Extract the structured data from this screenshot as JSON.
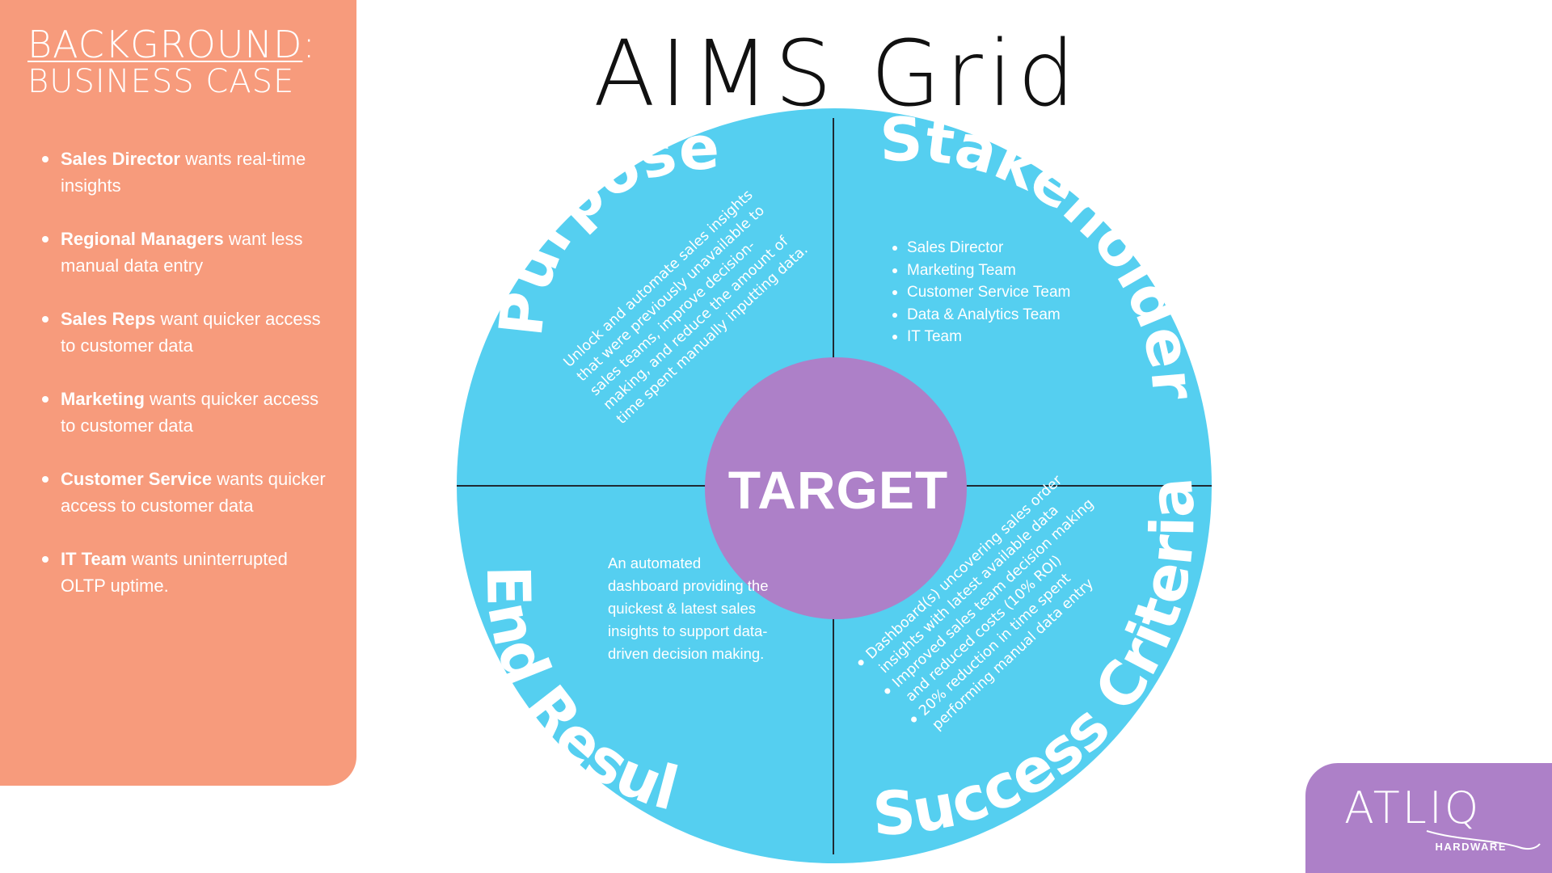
{
  "side_panel": {
    "heading_line1": "BACKGROUND",
    "heading_colon": ":",
    "heading_line2": "BUSINESS CASE",
    "items": [
      {
        "bold": "Sales Director",
        "text": " wants real-time insights"
      },
      {
        "bold": "Regional Managers",
        "text": " want less manual data entry"
      },
      {
        "bold": "Sales Reps",
        "text": " want quicker access to customer data"
      },
      {
        "bold": "Marketing",
        "text": " wants quicker access to customer data"
      },
      {
        "bold": "Customer Service",
        "text": " wants quicker access to customer data"
      },
      {
        "bold": "IT Team",
        "text": " wants uninterrupted OLTP uptime."
      }
    ]
  },
  "title": "AIMS Grid",
  "grid": {
    "center": "TARGET",
    "purpose": {
      "label": "Purpose",
      "lines": [
        "Unlock and automate sales insights",
        "that were previously unavailable to",
        "sales teams, improve decision-",
        "making, and reduce the amount of",
        "time spent manually inputting data."
      ]
    },
    "stakeholders": {
      "label": "Stakeholders",
      "items": [
        "Sales Director",
        "Marketing Team",
        "Customer Service Team",
        "Data & Analytics Team",
        "IT Team"
      ]
    },
    "end_result": {
      "label": "End Result",
      "text": "An automated dashboard providing the quickest & latest sales insights to support data-driven decision making."
    },
    "success_criteria": {
      "label": "Success Criteria",
      "lines": [
        "Dashboard(s) uncovering sales order",
        "insights with latest available data",
        "Improved sales team decision making",
        "and reduced costs (10% ROI)",
        "20% reduction in time spent",
        "performing manual data entry"
      ]
    }
  },
  "logo": {
    "word": "ATLIQ",
    "sub": "HARDWARE"
  },
  "colors": {
    "panel": "#F79B7C",
    "circle": "#55CFF0",
    "target": "#AD80C8",
    "logo": "#AD80C8"
  }
}
